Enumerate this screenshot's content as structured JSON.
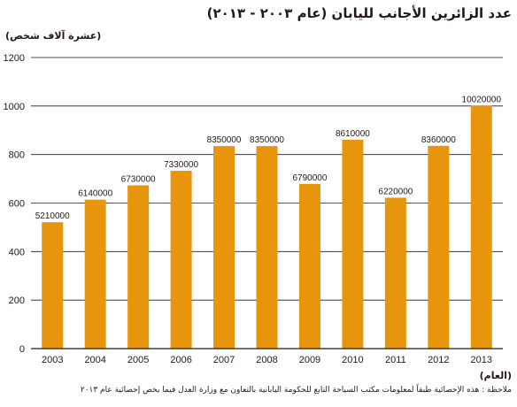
{
  "chart_data": {
    "type": "bar",
    "title": "عدد الزائرين الأجانب لليابان (عام ٢٠٠٣ - ٢٠١٣)",
    "ylabel": "(عشرة آلاف شخص)",
    "xlabel": "(العام)",
    "categories": [
      "2003",
      "2004",
      "2005",
      "2006",
      "2007",
      "2008",
      "2009",
      "2010",
      "2011",
      "2012",
      "2013"
    ],
    "values": [
      521,
      614,
      673,
      733,
      835,
      835,
      679,
      861,
      622,
      836,
      1002
    ],
    "data_labels": [
      "5210000",
      "6140000",
      "6730000",
      "7330000",
      "8350000",
      "8350000",
      "6790000",
      "8610000",
      "6220000",
      "8360000",
      "10020000"
    ],
    "ylim": [
      0,
      1200
    ],
    "yticks": [
      0,
      200,
      400,
      600,
      800,
      1000,
      1200
    ],
    "grid": true,
    "bar_color": "#e8950e",
    "note": "ملاحظة : هذه الإحصائية طبقاً لمعلومات مكتب السياحة التابع للحكومة اليابانية بالتعاون مع وزارة العدل فيما يخص إحصائية عام ٢٠١٣"
  }
}
